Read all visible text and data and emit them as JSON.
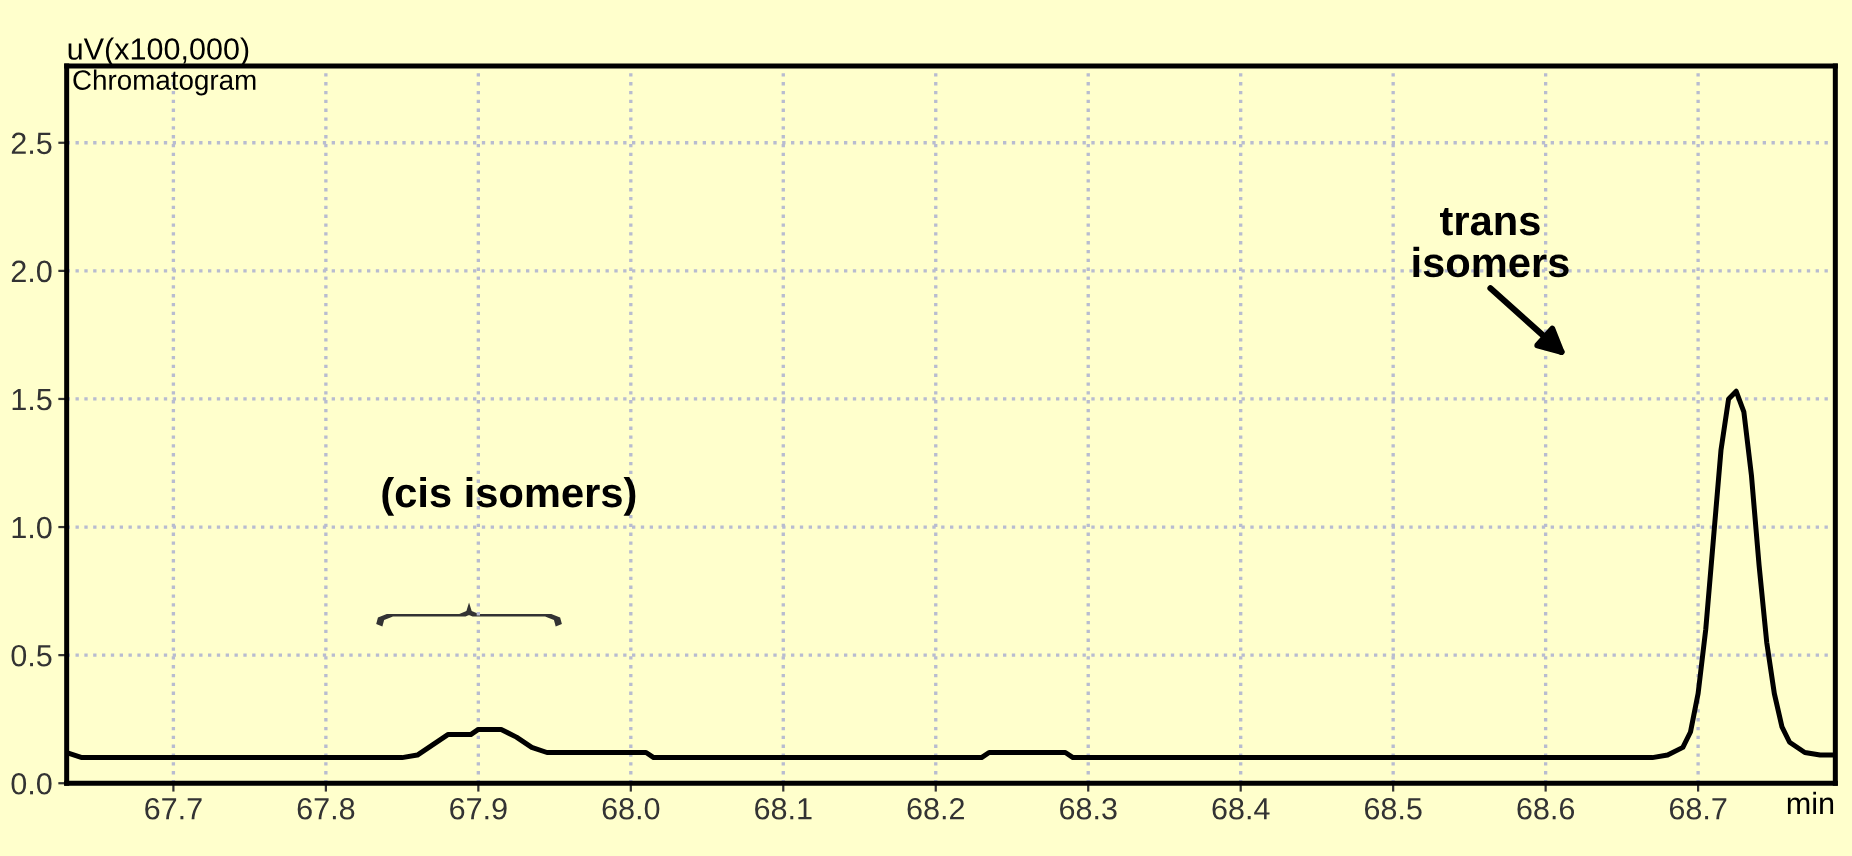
{
  "chart_data": {
    "type": "line",
    "ylabel": "uV(x100,000)",
    "xlabel": "min",
    "annotations": [
      "Chromatogram",
      "(cis isomers)",
      "trans\nisomers"
    ],
    "series": [
      {
        "color": "#000000",
        "x": [
          67.63,
          67.64,
          67.85,
          67.86,
          67.87,
          67.88,
          67.895,
          67.9,
          67.915,
          67.925,
          67.935,
          67.945,
          68.01,
          68.015,
          68.23,
          68.235,
          68.285,
          68.29,
          68.67,
          68.68,
          68.69,
          68.695,
          68.7,
          68.705,
          68.71,
          68.715,
          68.72,
          68.725,
          68.73,
          68.735,
          68.74,
          68.745,
          68.75,
          68.755,
          68.76,
          68.77,
          68.78,
          68.79
        ],
        "values": [
          0.12,
          0.1,
          0.1,
          0.11,
          0.15,
          0.19,
          0.19,
          0.21,
          0.21,
          0.18,
          0.14,
          0.12,
          0.12,
          0.1,
          0.1,
          0.12,
          0.12,
          0.1,
          0.1,
          0.11,
          0.14,
          0.2,
          0.35,
          0.6,
          0.95,
          1.3,
          1.5,
          1.53,
          1.45,
          1.2,
          0.85,
          0.55,
          0.35,
          0.22,
          0.16,
          0.12,
          0.11,
          0.11
        ]
      }
    ],
    "xlim": [
      67.63,
      68.79
    ],
    "ylim": [
      0,
      2.8
    ],
    "xticks": [
      67.7,
      67.8,
      67.9,
      {
        "value": 68.0,
        "label": "68.0"
      },
      68.1,
      68.2,
      68.3,
      68.4,
      68.5,
      68.6,
      68.7
    ],
    "yticks": [
      {
        "value": 0,
        "label": "0.0"
      },
      0.5,
      {
        "value": 1,
        "label": "1.0"
      },
      1.5,
      {
        "value": 2,
        "label": "2.0"
      },
      2.5
    ],
    "grid": true,
    "line_style": "solid",
    "marker": "none"
  }
}
